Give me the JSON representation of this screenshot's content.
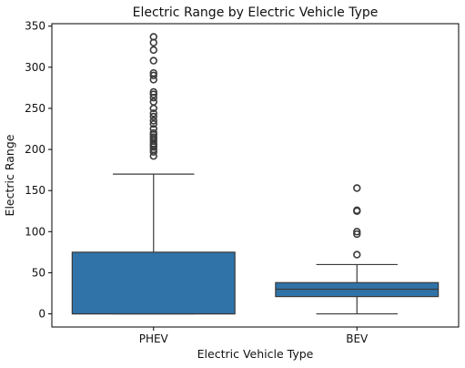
{
  "chart_data": {
    "type": "box",
    "title": "Electric Range by Electric Vehicle Type",
    "xlabel": "Electric Vehicle Type",
    "ylabel": "Electric Range",
    "ylim": [
      -16,
      353
    ],
    "yticks": [
      0,
      50,
      100,
      150,
      200,
      250,
      300,
      350
    ],
    "categories": [
      "PHEV",
      "BEV"
    ],
    "grid": false,
    "legend": "none",
    "box_color": "#2f73a8",
    "edge_color": "#3a3a3a",
    "boxes": [
      {
        "category": "PHEV",
        "whisker_low": 0,
        "q1": 0,
        "median": 0,
        "q3": 75,
        "whisker_high": 170,
        "outliers": [
          192,
          197,
          200,
          203,
          205,
          207,
          210,
          213,
          215,
          218,
          220,
          225,
          231,
          235,
          240,
          244,
          250,
          258,
          263,
          267,
          270,
          285,
          290,
          293,
          308,
          321,
          330,
          337
        ]
      },
      {
        "category": "BEV",
        "whisker_low": 0,
        "q1": 21,
        "median": 30,
        "q3": 38,
        "whisker_high": 60,
        "outliers": [
          72,
          97,
          100,
          125,
          126,
          153
        ]
      }
    ]
  }
}
